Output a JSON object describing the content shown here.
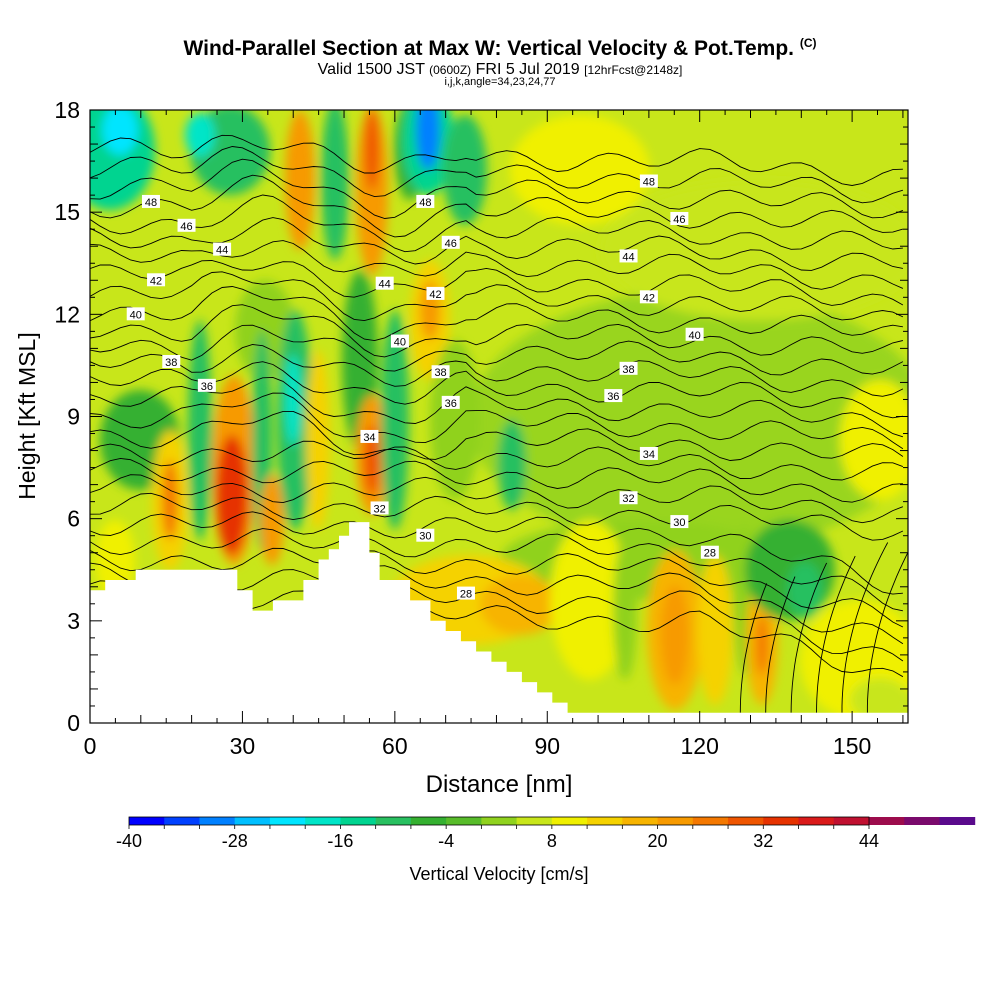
{
  "title": {
    "main": "Wind-Parallel Section at Max W: Vertical Velocity & Pot.Temp.",
    "copyright": "(C)",
    "valid_prefix": "Valid 1500 JST",
    "valid_utc": "(0600Z)",
    "valid_date": "FRI 5 Jul 2019",
    "forecast": "[12hrFcst@2148z]",
    "params": "i,j,k,angle=34,23,24,77"
  },
  "chart_data": {
    "type": "heatmap",
    "xlabel": "Distance [nm]",
    "ylabel": "Height [Kft MSL]",
    "xlim": [
      0,
      161
    ],
    "ylim": [
      0,
      18
    ],
    "x_ticks": [
      0,
      30,
      60,
      90,
      120,
      150
    ],
    "y_ticks": [
      0,
      3,
      6,
      9,
      12,
      15,
      18
    ],
    "colorbar": {
      "label": "Vertical Velocity [cm/s]",
      "ticks": [
        -40,
        -28,
        -16,
        -4,
        8,
        20,
        32,
        44
      ],
      "min": -40,
      "max": 44,
      "step": 4,
      "colors": [
        "#0000ff",
        "#0040ff",
        "#0080ff",
        "#00bfff",
        "#00e5ff",
        "#00e5c8",
        "#00d490",
        "#28c060",
        "#34b030",
        "#58bc2a",
        "#90d21e",
        "#c8e61a",
        "#f0f000",
        "#f5d200",
        "#f7b400",
        "#f79a00",
        "#f47800",
        "#ef5500",
        "#e63200",
        "#da1a1a",
        "#c01030",
        "#9c0c4c",
        "#7a0a6c",
        "#5a0a8c"
      ]
    },
    "terrain_profile": {
      "distance_nm": [
        0,
        3,
        3,
        9,
        9,
        29,
        29,
        32,
        32,
        36,
        36,
        42,
        42,
        45,
        45,
        47,
        47,
        49,
        49,
        51,
        51,
        55,
        55,
        57,
        57,
        63,
        63,
        67,
        67,
        70,
        70,
        73,
        73,
        76,
        76,
        79,
        79,
        82,
        82,
        85,
        85,
        88,
        88,
        91,
        91,
        94,
        94,
        161
      ],
      "height_kft": [
        3.9,
        3.9,
        4.2,
        4.2,
        4.5,
        4.5,
        3.9,
        3.9,
        3.3,
        3.3,
        3.6,
        3.6,
        4.2,
        4.2,
        4.8,
        4.8,
        5.1,
        5.1,
        5.5,
        5.5,
        5.9,
        5.9,
        5.0,
        5.0,
        4.2,
        4.2,
        3.6,
        3.6,
        3.0,
        3.0,
        2.7,
        2.7,
        2.4,
        2.4,
        2.1,
        2.1,
        1.8,
        1.8,
        1.5,
        1.5,
        1.2,
        1.2,
        0.9,
        0.9,
        0.6,
        0.6,
        0.3,
        0.3
      ]
    },
    "contour_labels": [
      {
        "text": "48",
        "x": 12,
        "y": 15.3
      },
      {
        "text": "46",
        "x": 19,
        "y": 14.6
      },
      {
        "text": "44",
        "x": 26,
        "y": 13.9
      },
      {
        "text": "42",
        "x": 13,
        "y": 13.0
      },
      {
        "text": "40",
        "x": 9,
        "y": 12.0
      },
      {
        "text": "38",
        "x": 16,
        "y": 10.6
      },
      {
        "text": "36",
        "x": 23,
        "y": 9.9
      },
      {
        "text": "34",
        "x": 55,
        "y": 8.4
      },
      {
        "text": "32",
        "x": 57,
        "y": 6.3
      },
      {
        "text": "30",
        "x": 66,
        "y": 5.5
      },
      {
        "text": "28",
        "x": 74,
        "y": 3.8
      },
      {
        "text": "48",
        "x": 66,
        "y": 15.3
      },
      {
        "text": "46",
        "x": 71,
        "y": 14.1
      },
      {
        "text": "44",
        "x": 58,
        "y": 12.9
      },
      {
        "text": "42",
        "x": 68,
        "y": 12.6
      },
      {
        "text": "40",
        "x": 61,
        "y": 11.2
      },
      {
        "text": "38",
        "x": 69,
        "y": 10.3
      },
      {
        "text": "36",
        "x": 71,
        "y": 9.4
      },
      {
        "text": "48",
        "x": 110,
        "y": 15.9
      },
      {
        "text": "46",
        "x": 116,
        "y": 14.8
      },
      {
        "text": "44",
        "x": 106,
        "y": 13.7
      },
      {
        "text": "42",
        "x": 110,
        "y": 12.5
      },
      {
        "text": "40",
        "x": 119,
        "y": 11.4
      },
      {
        "text": "38",
        "x": 106,
        "y": 10.4
      },
      {
        "text": "36",
        "x": 103,
        "y": 9.6
      },
      {
        "text": "34",
        "x": 110,
        "y": 7.9
      },
      {
        "text": "32",
        "x": 106,
        "y": 6.6
      },
      {
        "text": "30",
        "x": 116,
        "y": 5.9
      },
      {
        "text": "28",
        "x": 122,
        "y": 5.0
      }
    ]
  }
}
